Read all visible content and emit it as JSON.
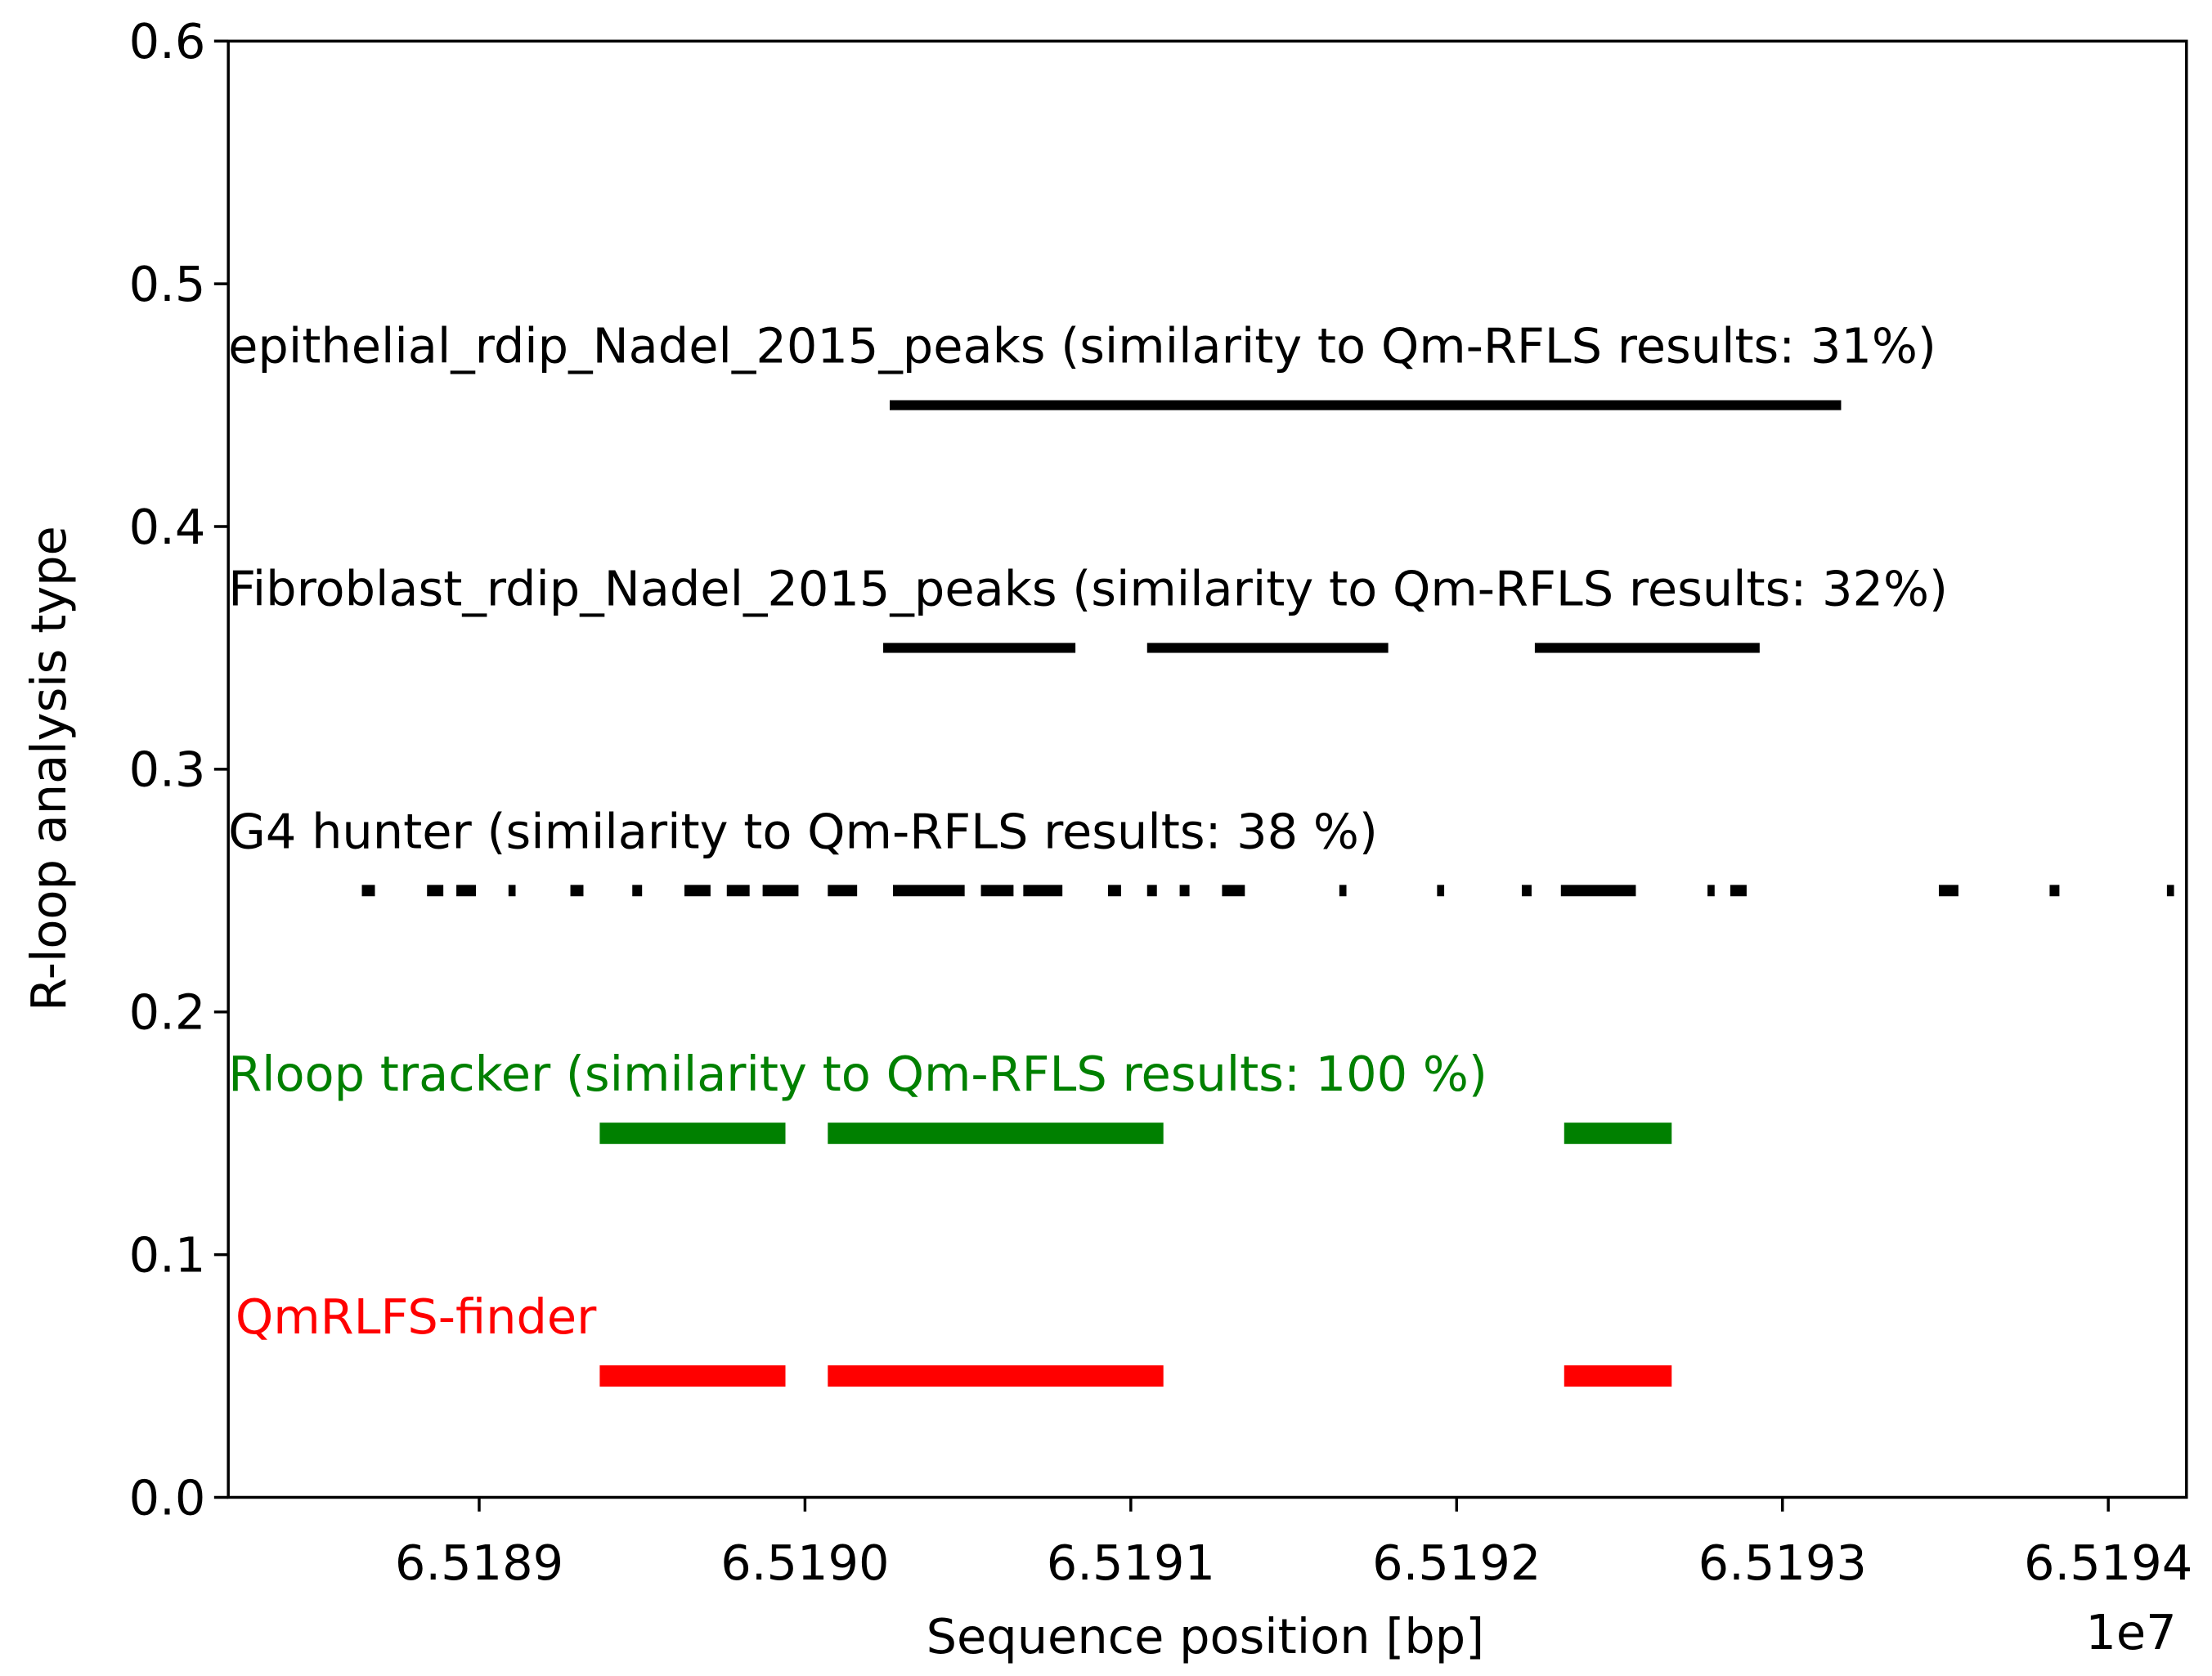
{
  "chart_data": {
    "type": "segment",
    "xlabel": "Sequence position [bp]",
    "ylabel": "R-loop analysis type",
    "x_offset_label": "1e7",
    "xlim": [
      6518823,
      6519424
    ],
    "ylim": [
      0,
      0.6
    ],
    "xticks": [
      {
        "value": 6518900,
        "label": "6.5189"
      },
      {
        "value": 6519000,
        "label": "6.5190"
      },
      {
        "value": 6519100,
        "label": "6.5191"
      },
      {
        "value": 6519200,
        "label": "6.5192"
      },
      {
        "value": 6519300,
        "label": "6.5193"
      },
      {
        "value": 6519400,
        "label": "6.5194"
      }
    ],
    "yticks": [
      {
        "value": 0,
        "label": "0.0"
      },
      0.1,
      0.2,
      0.3,
      0.4,
      0.5,
      0.6
    ],
    "series": [
      {
        "name": "QmRLFS-finder",
        "color": "#ff0000",
        "y": 0.05,
        "segments": [
          [
            6518937,
            6518994
          ],
          [
            6519007,
            6519110
          ],
          [
            6519233,
            6519266
          ]
        ]
      },
      {
        "name": "Rloop tracker (similarity to Qm-RFLS results: 100 %)",
        "color": "#008000",
        "y": 0.15,
        "segments": [
          [
            6518937,
            6518994
          ],
          [
            6519007,
            6519110
          ],
          [
            6519233,
            6519266
          ]
        ]
      },
      {
        "name": "G4 hunter (similarity to Qm-RFLS results: 38 %)",
        "color": "#000000",
        "y": 0.25,
        "segments": [
          [
            6518864,
            6518868
          ],
          [
            6518884,
            6518889
          ],
          [
            6518893,
            6518899
          ],
          [
            6518909,
            6518911
          ],
          [
            6518928,
            6518932
          ],
          [
            6518947,
            6518950
          ],
          [
            6518963,
            6518971
          ],
          [
            6518976,
            6518983
          ],
          [
            6518987,
            6518998
          ],
          [
            6519007,
            6519016
          ],
          [
            6519027,
            6519049
          ],
          [
            6519054,
            6519064
          ],
          [
            6519067,
            6519079
          ],
          [
            6519093,
            6519097
          ],
          [
            6519105,
            6519108
          ],
          [
            6519115,
            6519118
          ],
          [
            6519128,
            6519135
          ],
          [
            6519164,
            6519166
          ],
          [
            6519194,
            6519196
          ],
          [
            6519220,
            6519223
          ],
          [
            6519232,
            6519255
          ],
          [
            6519277,
            6519279
          ],
          [
            6519284,
            6519289
          ],
          [
            6519348,
            6519354
          ],
          [
            6519382,
            6519385
          ],
          [
            6519418,
            6519420
          ]
        ]
      },
      {
        "name": "Fibroblast_rdip_Nadel_2015_peaks (similarity to Qm-RFLS results: 32%)",
        "color": "#000000",
        "y": 0.35,
        "segments": [
          [
            6519024,
            6519083
          ],
          [
            6519105,
            6519179
          ],
          [
            6519224,
            6519293
          ]
        ]
      },
      {
        "name": "epithelial_rdip_Nadel_2015_peaks (similarity to Qm-RFLS results: 31%)",
        "color": "#000000",
        "y": 0.45,
        "segments": [
          [
            6519026,
            6519318
          ]
        ]
      }
    ]
  }
}
